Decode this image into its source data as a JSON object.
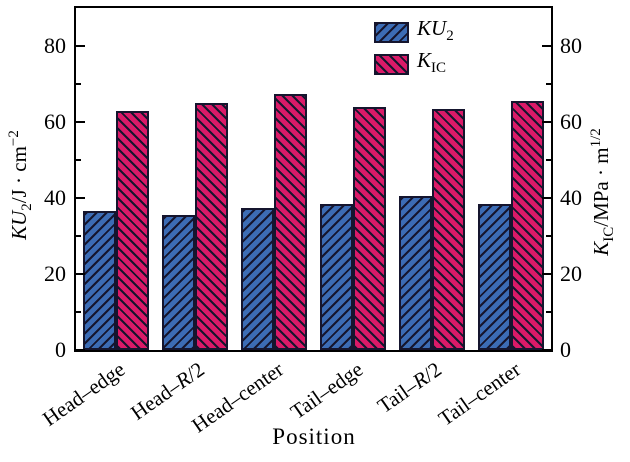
{
  "figure": {
    "x_axis_title": "Position",
    "y_left_label": {
      "sym": "KU",
      "sub": "2",
      "unit": "/J · cm",
      "sup": "−2"
    },
    "y_right_label": {
      "sym": "K",
      "sub": "IC",
      "unit": "/MPa · m",
      "sup": "1/2"
    },
    "legend": {
      "items": [
        {
          "sym": "KU",
          "sub": "2"
        },
        {
          "sym": "K",
          "sub": "IC"
        }
      ]
    },
    "colors": {
      "ku2_fill": "#3c6cb5",
      "kic_fill": "#da1a68",
      "hatch_line": "#15152e",
      "axis": "#000000"
    }
  },
  "chart_data": {
    "type": "bar",
    "categories": [
      "Head–edge",
      "Head–R/2",
      "Head–center",
      "Tail–edge",
      "Tail–R/2",
      "Tail–center"
    ],
    "series": [
      {
        "name": "KU2",
        "color": "#3c6cb5",
        "hatch": "/",
        "values": [
          36.5,
          35.5,
          37.5,
          38.5,
          40.5,
          38.5
        ]
      },
      {
        "name": "KIC",
        "color": "#da1a68",
        "hatch": "\\",
        "values": [
          63,
          65,
          67.5,
          64,
          63.5,
          65.5
        ]
      }
    ],
    "xlabel": "Position",
    "ylabel_left": "KU2/J·cm^−2",
    "ylabel_right": "KIC/MPa·m^1/2",
    "ylim": [
      0,
      90
    ],
    "yticks_major": [
      0,
      20,
      40,
      60,
      80
    ],
    "yticks_minor": [
      10,
      30,
      50,
      70
    ],
    "dual_axis_same_scale": true,
    "grid": false,
    "legend_position": "upper center-right"
  }
}
